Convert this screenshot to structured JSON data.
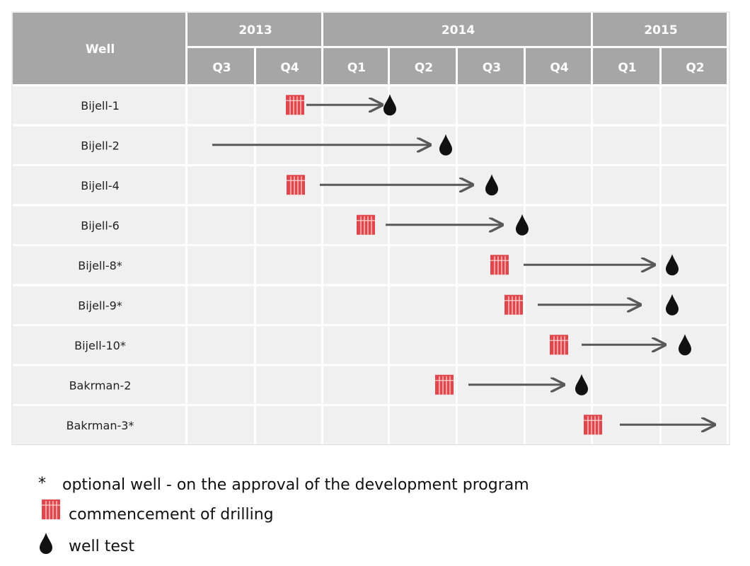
{
  "table": {
    "header": {
      "well": "Well",
      "years": [
        "2013",
        "2014",
        "2015"
      ],
      "quarters": [
        "Q3",
        "Q4",
        "Q1",
        "Q2",
        "Q3",
        "Q4",
        "Q1",
        "Q2"
      ]
    },
    "rows": [
      "Bijell-1",
      "Bijell-2",
      "Bijell-4",
      "Bijell-6",
      "Bijell-8*",
      "Bijell-9*",
      "Bijell-10*",
      "Bakrman-2",
      "Bakrman-3*"
    ]
  },
  "legend": {
    "optional_mark": "*",
    "optional": "optional well - on the approval of the development program",
    "drilling": "commencement of drilling",
    "test": "well test"
  }
}
